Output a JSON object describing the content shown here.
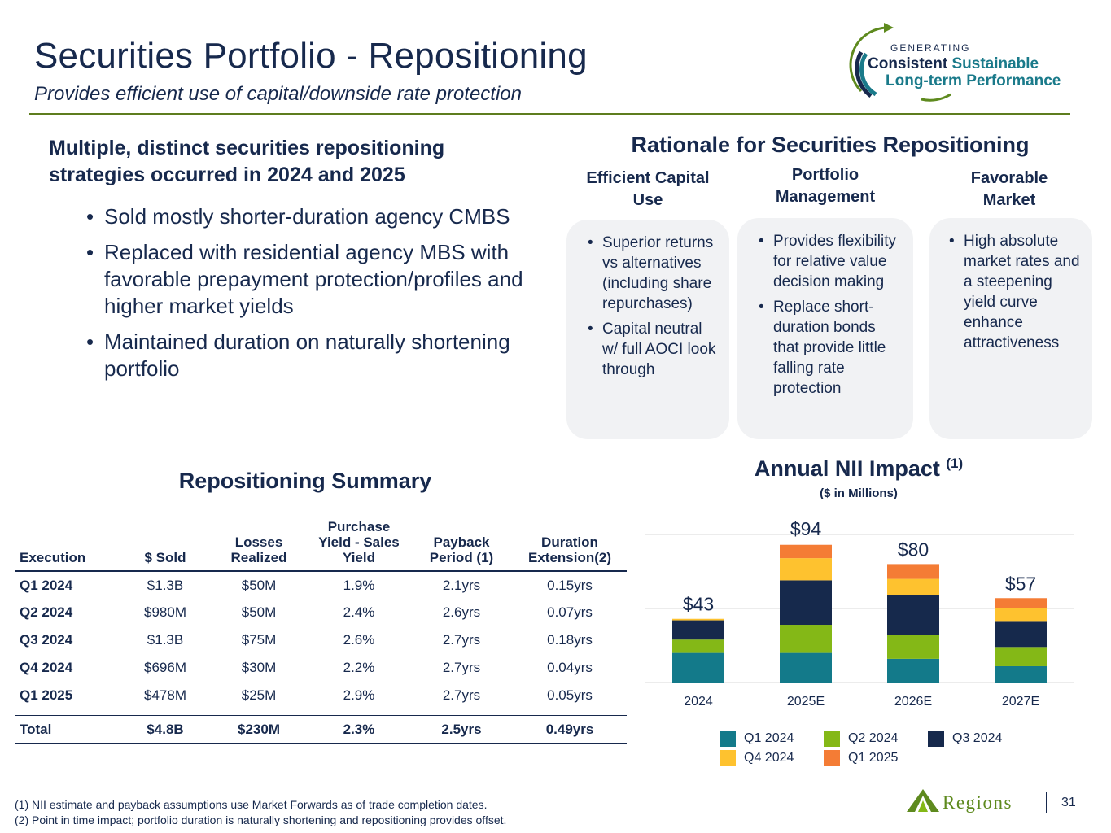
{
  "header": {
    "title": "Securities Portfolio - Repositioning",
    "subtitle": "Provides efficient use of capital/downside rate protection"
  },
  "brand": {
    "generating": "GENERATING",
    "line1_a": "Consistent",
    "line1_b": "Sustainable",
    "line2": "Long-term Performance"
  },
  "left": {
    "heading": "Multiple, distinct securities repositioning strategies occurred in 2024 and 2025",
    "bullets": [
      "Sold mostly shorter-duration agency CMBS",
      "Replaced with residential agency MBS with favorable prepayment protection/profiles and higher market yields",
      "Maintained duration on naturally shortening portfolio"
    ]
  },
  "rationale": {
    "title": "Rationale for Securities Repositioning",
    "columns": [
      {
        "heading": "Efficient Capital Use",
        "bullets": [
          "Superior returns vs alternatives (including share repurchases)",
          "Capital neutral w/ full AOCI look through"
        ]
      },
      {
        "heading": "Portfolio Management",
        "bullets": [
          "Provides flexibility for relative value decision making",
          "Replace short-duration bonds that provide little falling rate protection"
        ]
      },
      {
        "heading": "Favorable Market",
        "bullets": [
          "High absolute market rates and a steepening yield curve enhance attractiveness"
        ]
      }
    ]
  },
  "summary": {
    "title": "Repositioning Summary",
    "headers": [
      "Execution",
      "$ Sold",
      "Losses Realized",
      "Purchase Yield - Sales Yield",
      "Payback Period (1)",
      "Duration Extension(2)"
    ],
    "rows": [
      [
        "Q1 2024",
        "$1.3B",
        "$50M",
        "1.9%",
        "2.1yrs",
        "0.15yrs"
      ],
      [
        "Q2 2024",
        "$980M",
        "$50M",
        "2.4%",
        "2.6yrs",
        "0.07yrs"
      ],
      [
        "Q3 2024",
        "$1.3B",
        "$75M",
        "2.6%",
        "2.7yrs",
        "0.18yrs"
      ],
      [
        "Q4 2024",
        "$696M",
        "$30M",
        "2.2%",
        "2.7yrs",
        "0.04yrs"
      ],
      [
        "Q1 2025",
        "$478M",
        "$25M",
        "2.9%",
        "2.7yrs",
        "0.05yrs"
      ]
    ],
    "total": [
      "Total",
      "$4.8B",
      "$230M",
      "2.3%",
      "2.5yrs",
      "0.49yrs"
    ]
  },
  "chart_data": {
    "type": "bar",
    "stacked": true,
    "title": "Annual NII Impact",
    "title_note": "(1)",
    "subtitle": "($ in Millions)",
    "categories": [
      "2024",
      "2025E",
      "2026E",
      "2027E"
    ],
    "totals_labels": [
      "$43",
      "$94",
      "$80",
      "$57"
    ],
    "totals": [
      43,
      94,
      80,
      57
    ],
    "ylim": [
      0,
      100
    ],
    "gridlines": [
      50,
      100
    ],
    "series": [
      {
        "name": "Q1 2024",
        "color": "#137a8a",
        "values": [
          20,
          20,
          16,
          11
        ]
      },
      {
        "name": "Q2 2024",
        "color": "#84b817",
        "values": [
          9,
          19,
          16,
          13
        ]
      },
      {
        "name": "Q3 2024",
        "color": "#16294c",
        "values": [
          13,
          30,
          27,
          17
        ]
      },
      {
        "name": "Q4 2024",
        "color": "#fec22f",
        "values": [
          1,
          15,
          11,
          9
        ]
      },
      {
        "name": "Q1 2025",
        "color": "#f47c35",
        "values": [
          0,
          9,
          10,
          7
        ]
      }
    ],
    "legend_position": "bottom"
  },
  "footnotes": [
    "(1) NII estimate and payback assumptions use Market Forwards as of trade completion dates.",
    "(2) Point in time impact; portfolio duration is naturally shortening and repositioning provides offset."
  ],
  "footer": {
    "logo_text": "Regions",
    "page": "31"
  }
}
